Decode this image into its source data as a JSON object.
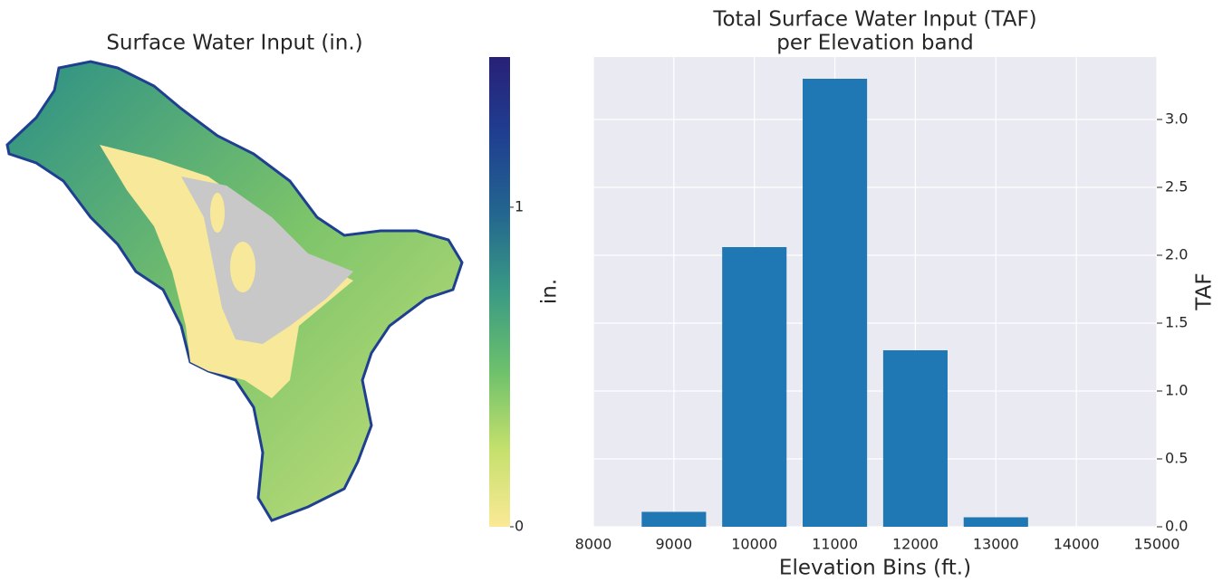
{
  "chart_data": [
    {
      "type": "map",
      "title": "Surface Water Input (in.)",
      "colorbar": {
        "label": "in.",
        "lim": [
          0,
          1.47
        ],
        "ticks": [
          0,
          1
        ],
        "colors": [
          "#fbe996",
          "#c4e06c",
          "#6cc06c",
          "#3a9a84",
          "#23668f",
          "#1f3f91",
          "#282077"
        ]
      }
    },
    {
      "type": "bar",
      "title": [
        "Total Surface Water Input (TAF)",
        "per Elevation band"
      ],
      "x": [
        9000,
        10000,
        11000,
        12000,
        13000
      ],
      "values": [
        0.11,
        2.06,
        3.3,
        1.3,
        0.07
      ],
      "color": "#1f77b4",
      "xlabel": "Elevation Bins (ft.)",
      "ylabel": "TAF",
      "xlim": [
        8000,
        15000
      ],
      "xticks": [
        8000,
        9000,
        10000,
        11000,
        12000,
        13000,
        14000,
        15000
      ],
      "ylim": [
        0,
        3.46
      ],
      "yticks": [
        {
          "value": 0,
          "label": "0.0"
        },
        {
          "value": 0.5,
          "label": "0.5"
        },
        {
          "value": 1,
          "label": "1.0"
        },
        {
          "value": 1.5,
          "label": "1.5"
        },
        {
          "value": 2,
          "label": "2.0"
        },
        {
          "value": 2.5,
          "label": "2.5"
        },
        {
          "value": 3,
          "label": "3.0"
        }
      ],
      "grid": true,
      "background": "#eaeaf2"
    }
  ]
}
